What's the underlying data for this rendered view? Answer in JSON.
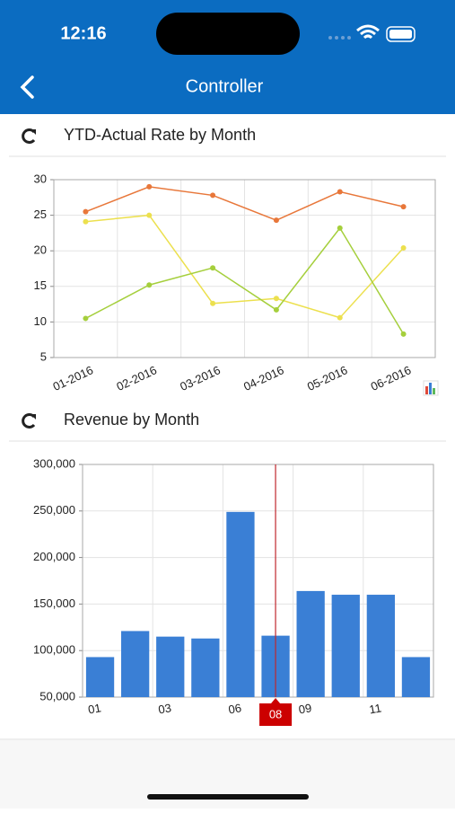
{
  "status": {
    "time": "12:16"
  },
  "nav": {
    "title": "Controller"
  },
  "chart_data": [
    {
      "type": "line",
      "title": "YTD-Actual Rate by Month",
      "categories": [
        "01-2016",
        "02-2016",
        "03-2016",
        "04-2016",
        "05-2016",
        "06-2016"
      ],
      "series": [
        {
          "color": "#e8773a",
          "values": [
            25.5,
            29,
            27.8,
            24.3,
            28.3,
            26.2
          ]
        },
        {
          "color": "#ece04e",
          "values": [
            24.1,
            25,
            12.6,
            13.3,
            10.6,
            20.4
          ]
        },
        {
          "color": "#a5cf3c",
          "values": [
            10.5,
            15.2,
            17.6,
            11.7,
            23.2,
            8.3
          ]
        }
      ],
      "ylim": [
        5,
        30
      ],
      "yticks": [
        5,
        10,
        15,
        20,
        25,
        30
      ],
      "grid": true
    },
    {
      "type": "bar",
      "title": "Revenue by Month",
      "categories": [
        "01",
        null,
        "03",
        null,
        "06",
        "08",
        "09",
        null,
        "11",
        null
      ],
      "values": [
        93000,
        121000,
        115000,
        113000,
        249000,
        116000,
        164000,
        160000,
        160000,
        93000
      ],
      "color": "#3a7fd5",
      "selected": 5,
      "ylim": [
        50000,
        300000
      ],
      "yticks": [
        {
          "value": 50000,
          "label": "50,000"
        },
        {
          "value": 100000,
          "label": "100,000"
        },
        {
          "value": 150000,
          "label": "150,000"
        },
        {
          "value": 200000,
          "label": "200,000"
        },
        {
          "value": 250000,
          "label": "250,000"
        },
        {
          "value": 300000,
          "label": "300,000"
        }
      ],
      "grid": true
    }
  ]
}
